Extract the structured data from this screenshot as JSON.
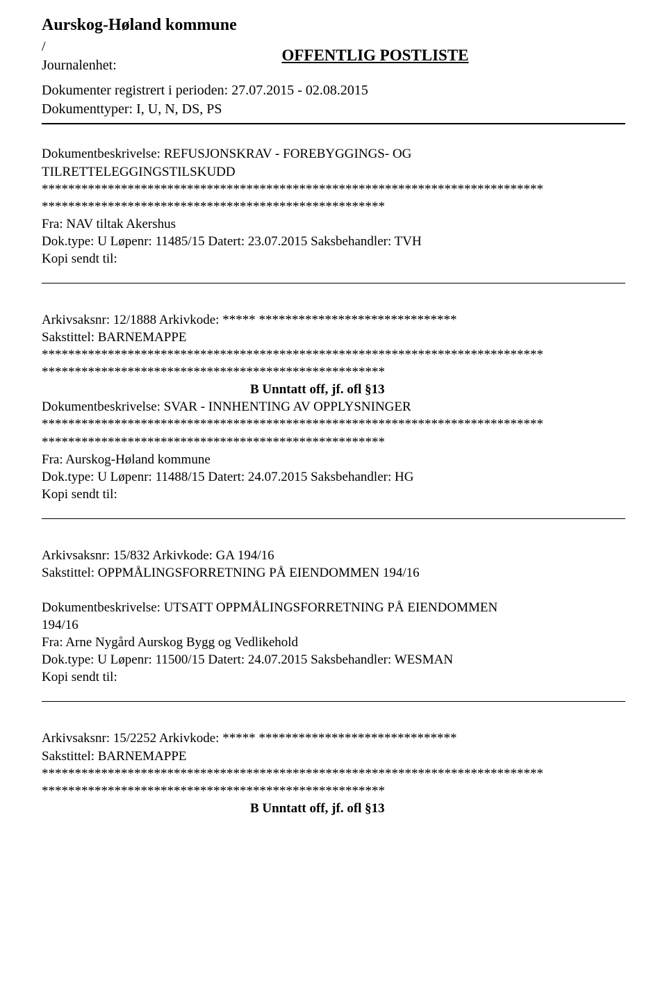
{
  "header": {
    "kommune": "Aurskog-Høland kommune",
    "slash": "/",
    "journal_label": " Journalenhet:",
    "offentlig": "OFFENTLIG POSTLISTE",
    "reg_period": "Dokumenter registrert i perioden: 27.07.2015 - 02.08.2015",
    "doc_types": "Dokumenttyper: I, U, N, DS, PS"
  },
  "stars_full": "****************************************************************************",
  "stars_half": "****************************************************",
  "stars_short": "***** ******************************",
  "entries": [
    {
      "desc": "Dokumentbeskrivelse: REFUSJONSKRAV - FOREBYGGINGS- OG",
      "desc2": "TILRETTELEGGINGSTILSKUDD",
      "fra": "Fra: NAV tiltak Akershus",
      "doktype": "Dok.type: U  Løpenr: 11485/15 Datert: 23.07.2015 Saksbehandler: TVH",
      "kopi": "Kopi sendt til:"
    },
    {
      "arkiv": "Arkivsaksnr: 12/1888      Arkivkode: ",
      "sak": "Sakstittel: BARNEMAPPE",
      "exemption": "B  Unntatt off, jf. ofl §13",
      "desc": "Dokumentbeskrivelse: SVAR - INNHENTING AV OPPLYSNINGER",
      "fra": "Fra: Aurskog-Høland kommune",
      "doktype": "Dok.type: U  Løpenr: 11488/15 Datert: 24.07.2015 Saksbehandler: HG",
      "kopi": "Kopi sendt til:"
    },
    {
      "arkiv": "Arkivsaksnr: 15/832      Arkivkode: GA 194/16",
      "sak": "Sakstittel: OPPMÅLINGSFORRETNING PÅ EIENDOMMEN 194/16",
      "desc": "Dokumentbeskrivelse: UTSATT OPPMÅLINGSFORRETNING PÅ EIENDOMMEN",
      "desc2": "194/16",
      "fra": "Fra: Arne Nygård Aurskog Bygg og Vedlikehold",
      "doktype": "Dok.type: U  Løpenr: 11500/15 Datert: 24.07.2015 Saksbehandler: WESMAN",
      "kopi": "Kopi sendt til:"
    },
    {
      "arkiv": "Arkivsaksnr: 15/2252      Arkivkode: ",
      "sak": "Sakstittel: BARNEMAPPE",
      "exemption": "B  Unntatt off, jf. ofl §13"
    }
  ]
}
